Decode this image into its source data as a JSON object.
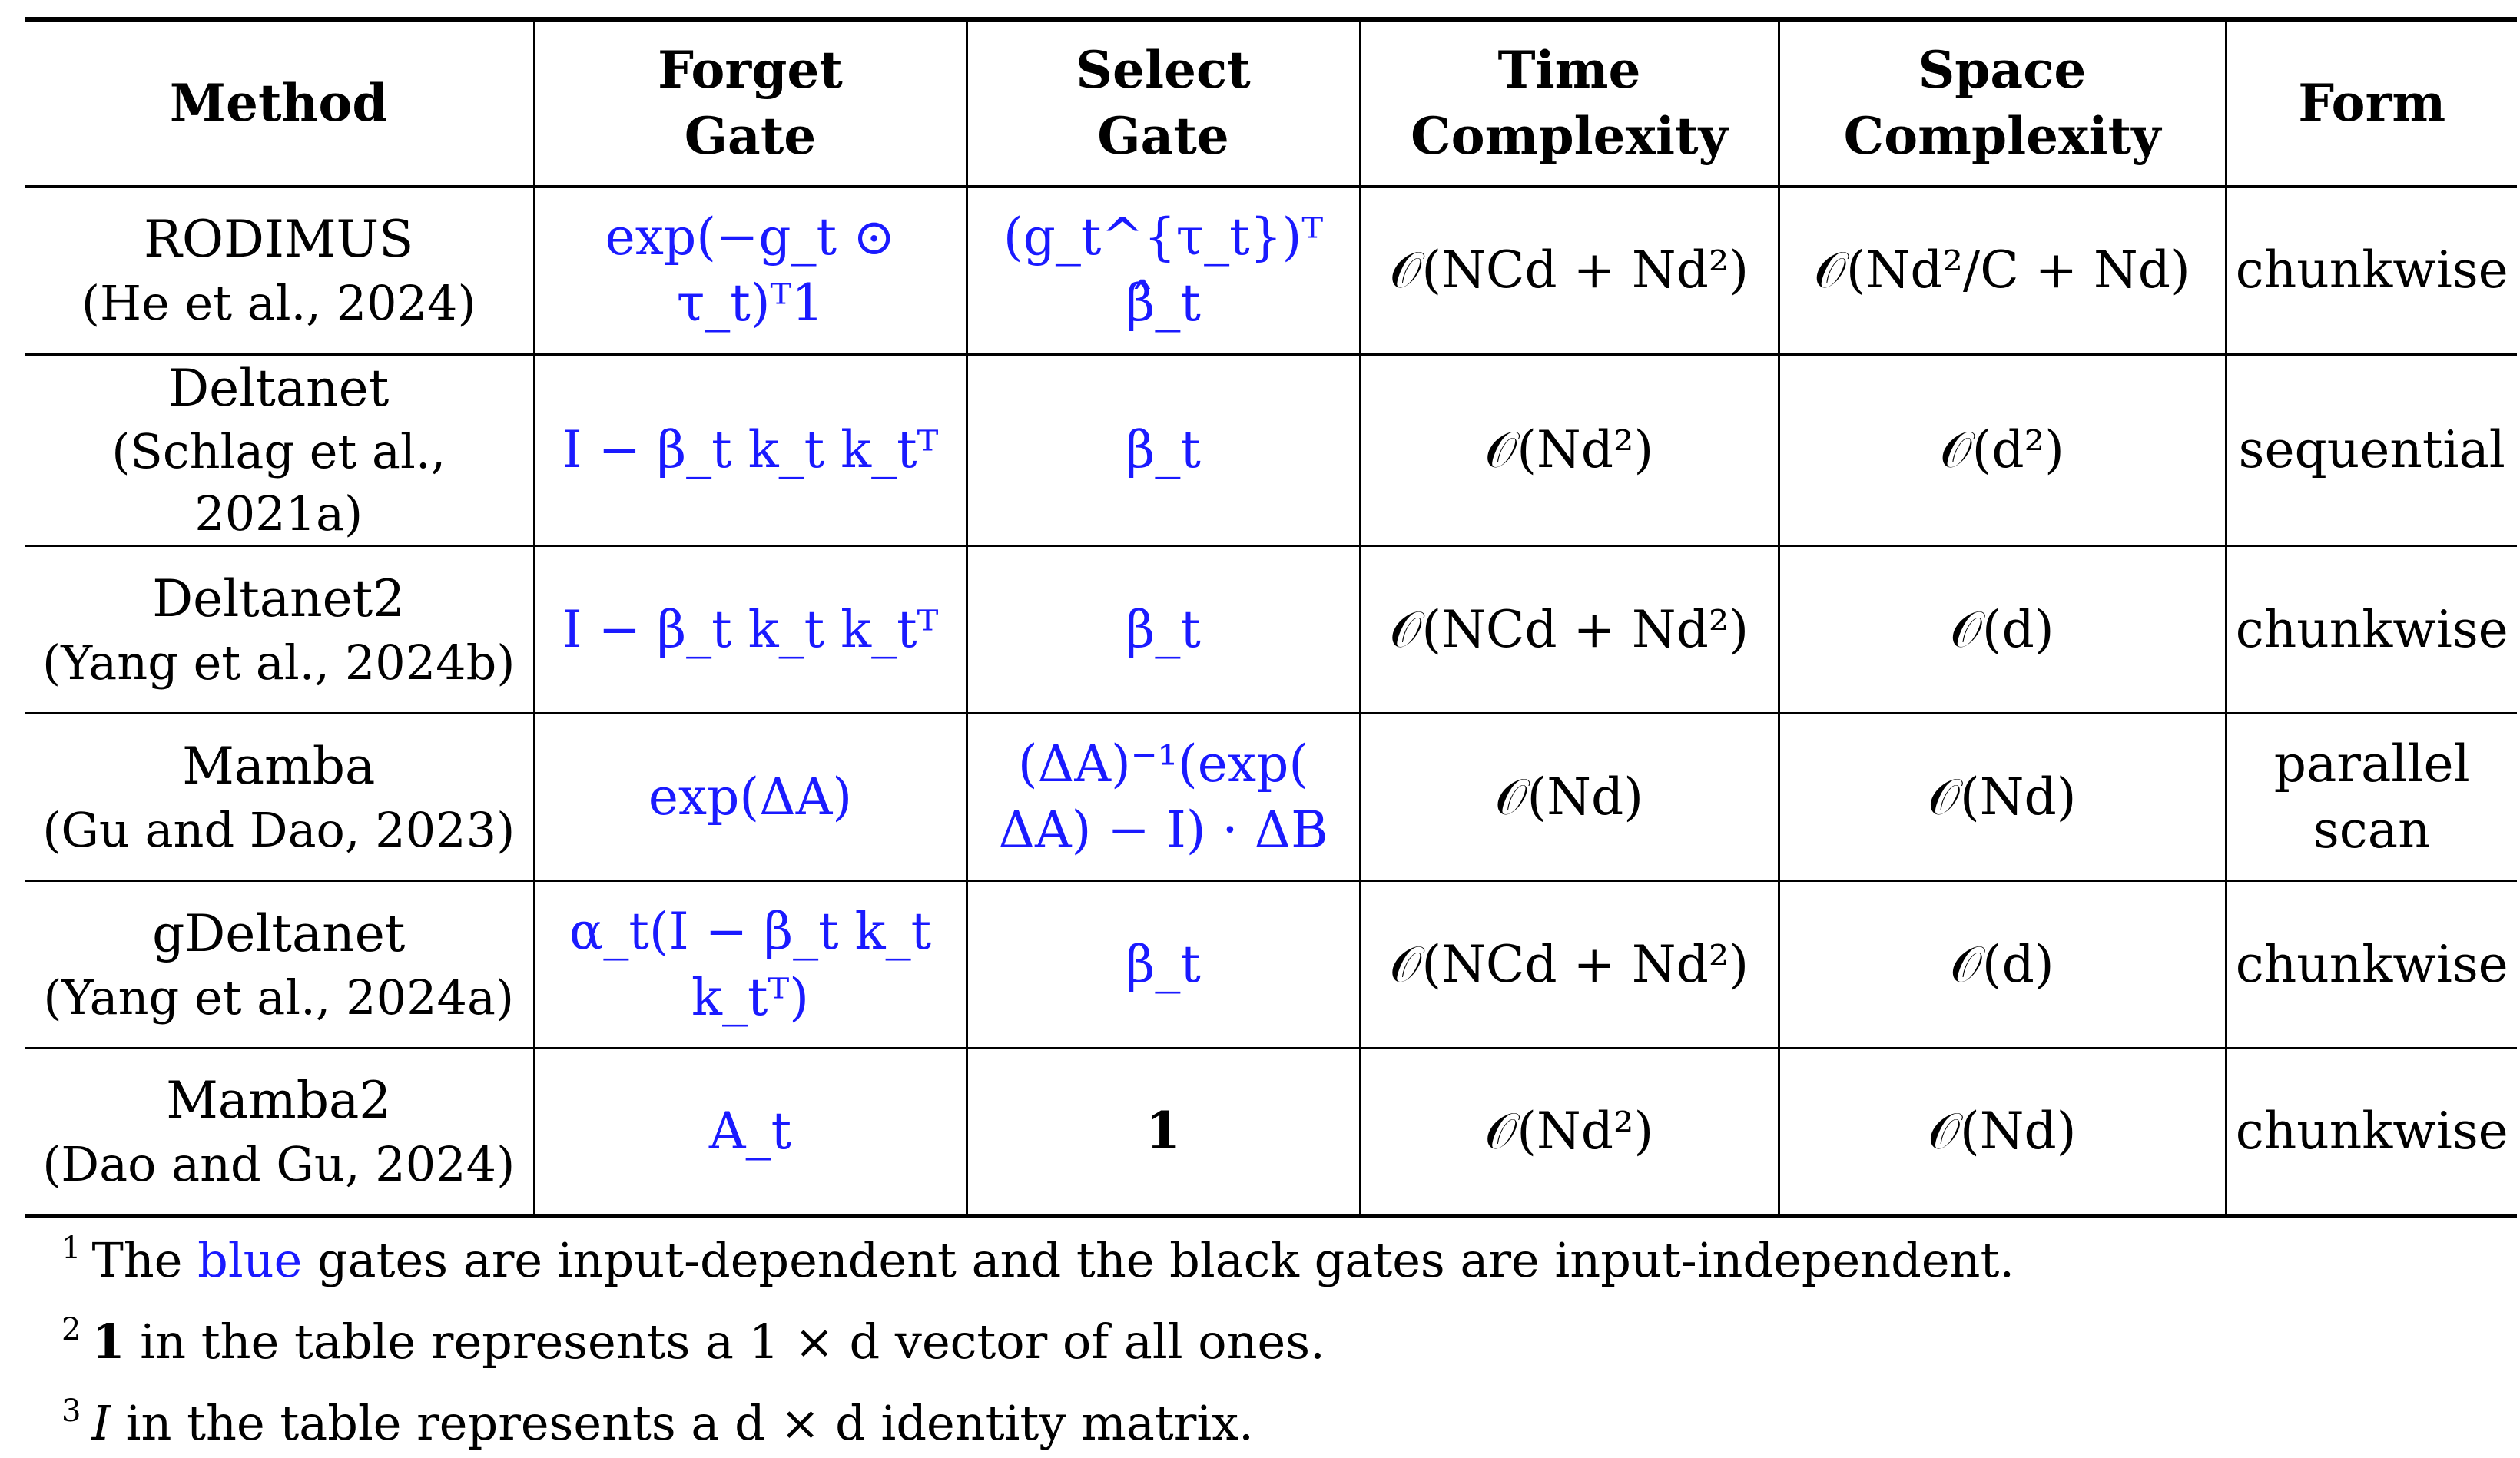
{
  "header": {
    "method": "Method",
    "forget_gate_l1": "Forget",
    "forget_gate_l2": "Gate",
    "select_gate_l1": "Select",
    "select_gate_l2": "Gate",
    "time_l1": "Time",
    "time_l2": "Complexity",
    "space_l1": "Space",
    "space_l2": "Complexity",
    "form": "Form"
  },
  "rows": [
    {
      "method": "RODIMUS",
      "citation": "(He et al., 2024)",
      "forget_gate": "exp(−g_t ⊙ τ_t)ᵀ1",
      "select_gate": "(g_t^{τ_t})ᵀ β̂_t",
      "time": "𝒪(NCd + Nd²)",
      "space": "𝒪(Nd²/C + Nd)",
      "form": "chunkwise"
    },
    {
      "method": "Deltanet",
      "citation": "(Schlag et al., 2021a)",
      "forget_gate": "I − β_t k_t k_tᵀ",
      "select_gate": "β_t",
      "time": "𝒪(Nd²)",
      "space": "𝒪(d²)",
      "form": "sequential"
    },
    {
      "method": "Deltanet2",
      "citation": "(Yang et al., 2024b)",
      "forget_gate": "I − β_t k_t k_tᵀ",
      "select_gate": "β_t",
      "time": "𝒪(NCd + Nd²)",
      "space": "𝒪(d)",
      "form": "chunkwise"
    },
    {
      "method": "Mamba",
      "citation": "(Gu and Dao, 2023)",
      "forget_gate": "exp(ΔA)",
      "select_gate_l1": "(ΔA)⁻¹(exp(",
      "select_gate_l2": "ΔA) − I) · ΔB",
      "time": "𝒪(Nd)",
      "space": "𝒪(Nd)",
      "form_l1": "parallel",
      "form_l2": "scan"
    },
    {
      "method": "gDeltanet",
      "citation": "(Yang et al., 2024a)",
      "forget_gate": "α_t(I − β_t k_t k_tᵀ)",
      "select_gate": "β_t",
      "time": "𝒪(NCd + Nd²)",
      "space": "𝒪(d)",
      "form": "chunkwise"
    },
    {
      "method": "Mamba2",
      "citation": "(Dao and Gu, 2024)",
      "forget_gate": "A_t",
      "select_gate": "1",
      "time": "𝒪(Nd²)",
      "space": "𝒪(Nd)",
      "form": "chunkwise"
    }
  ],
  "notes": [
    {
      "marker": "1",
      "pre": "The ",
      "highlight": "blue",
      "post": " gates are input-dependent and the black gates are input-independent."
    },
    {
      "marker": "2",
      "term": "1",
      "post": " in the table represents a 1 × d vector of all ones."
    },
    {
      "marker": "3",
      "term": "I",
      "post": " in the table represents a d × d identity matrix."
    }
  ],
  "colors": {
    "input_dependent": "#1a1aff",
    "input_independent": "#000000"
  }
}
